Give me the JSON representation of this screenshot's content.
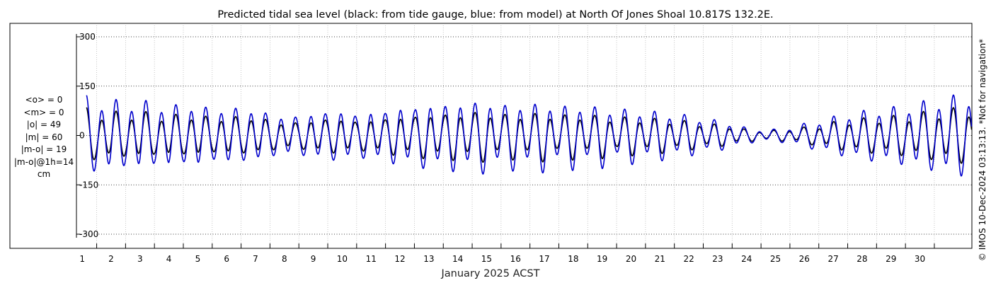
{
  "chart_data": {
    "type": "line",
    "title": "Predicted tidal sea level (black: from tide gauge, blue: from model) at North Of Jones Shoal 10.817S 132.2E.",
    "xlabel": "January 2025 ACST",
    "ylabel": "",
    "ylim": [
      -300,
      300
    ],
    "xlim": [
      0.3,
      31.3
    ],
    "y_ticks": [
      -300,
      -150,
      0,
      150,
      300
    ],
    "y_tick_labels": [
      "-300",
      "-150",
      "0",
      "150",
      "300"
    ],
    "x_ticks": [
      1,
      2,
      3,
      4,
      5,
      6,
      7,
      8,
      9,
      10,
      11,
      12,
      13,
      14,
      15,
      16,
      17,
      18,
      19,
      20,
      21,
      22,
      23,
      24,
      25,
      26,
      27,
      28,
      29,
      30
    ],
    "x_tick_labels": [
      "1",
      "2",
      "3",
      "4",
      "5",
      "6",
      "7",
      "8",
      "9",
      "10",
      "11",
      "12",
      "13",
      "14",
      "15",
      "16",
      "17",
      "18",
      "19",
      "20",
      "21",
      "22",
      "23",
      "24",
      "25",
      "26",
      "27",
      "28",
      "29",
      "30"
    ],
    "grid": true,
    "series": [
      {
        "color": "#000000",
        "x": [
          0.5,
          1.0,
          1.5,
          2.0,
          2.5,
          3.0,
          3.5,
          4.0,
          4.5,
          5.0,
          5.5,
          6.0,
          6.5,
          7.0,
          7.5,
          8.0,
          8.5,
          9.0,
          9.5,
          10.0,
          10.5,
          11.0,
          11.5,
          12.0,
          12.5,
          13.0,
          13.5,
          14.0,
          14.5,
          15.0,
          15.5,
          16.0,
          16.5,
          17.0,
          17.5,
          18.0,
          18.5,
          19.0,
          19.5,
          20.0,
          20.5,
          21.0,
          21.5,
          22.0,
          22.5,
          23.0,
          23.5,
          24.0,
          24.5,
          25.0,
          25.5,
          26.0,
          26.5,
          27.0,
          27.5,
          28.0,
          28.5,
          29.0,
          29.5,
          30.0,
          30.5,
          31.0
        ],
        "amplitude": [
          75,
          55,
          68,
          50,
          70,
          45,
          62,
          48,
          62,
          40,
          58,
          45,
          55,
          35,
          40,
          30,
          48,
          38,
          55,
          32,
          50,
          40,
          60,
          45,
          68,
          50,
          70,
          55,
          72,
          48,
          65,
          50,
          70,
          45,
          65,
          45,
          60,
          40,
          55,
          38,
          50,
          35,
          40,
          28,
          30,
          22,
          15,
          12,
          12,
          15,
          20,
          25,
          35,
          38,
          45,
          45,
          50,
          50,
          60,
          60,
          70,
          70
        ],
        "diurnal": [
          -25,
          -20,
          -18,
          -15,
          -20,
          -15,
          -15,
          -10,
          -15,
          -10,
          -15,
          -8,
          -12,
          -10,
          -10,
          -8,
          -10,
          -10,
          -15,
          -8,
          -12,
          -10,
          -15,
          -12,
          -18,
          -12,
          -20,
          -15,
          -20,
          -15,
          -18,
          -12,
          -18,
          -12,
          -15,
          -10,
          -15,
          -10,
          -12,
          -8,
          -10,
          -8,
          -10,
          -5,
          -8,
          -5,
          -5,
          -5,
          -5,
          -5,
          -8,
          -8,
          -10,
          -10,
          -12,
          -12,
          -15,
          -15,
          -18,
          -18,
          -20,
          -20
        ]
      },
      {
        "color": "#0000cc",
        "x": [
          0.5,
          1.0,
          1.5,
          2.0,
          2.5,
          3.0,
          3.5,
          4.0,
          4.5,
          5.0,
          5.5,
          6.0,
          6.5,
          7.0,
          7.5,
          8.0,
          8.5,
          9.0,
          9.5,
          10.0,
          10.5,
          11.0,
          11.5,
          12.0,
          12.5,
          13.0,
          13.5,
          14.0,
          14.5,
          15.0,
          15.5,
          16.0,
          16.5,
          17.0,
          17.5,
          18.0,
          18.5,
          19.0,
          19.5,
          20.0,
          20.5,
          21.0,
          21.5,
          22.0,
          22.5,
          23.0,
          23.5,
          24.0,
          24.5,
          25.0,
          25.5,
          26.0,
          26.5,
          27.0,
          27.5,
          28.0,
          28.5,
          29.0,
          29.5,
          30.0,
          30.5,
          31.0
        ],
        "amplitude": [
          110,
          85,
          105,
          75,
          105,
          70,
          95,
          70,
          95,
          60,
          88,
          65,
          80,
          50,
          60,
          45,
          70,
          55,
          80,
          48,
          75,
          58,
          90,
          65,
          100,
          72,
          105,
          78,
          108,
          70,
          98,
          72,
          102,
          65,
          95,
          65,
          88,
          58,
          80,
          55,
          72,
          50,
          58,
          40,
          42,
          30,
          20,
          15,
          15,
          20,
          30,
          38,
          50,
          55,
          65,
          68,
          75,
          75,
          90,
          90,
          105,
          105
        ],
        "diurnal": [
          -30,
          -25,
          -22,
          -18,
          -25,
          -18,
          -18,
          -12,
          -18,
          -12,
          -18,
          -10,
          -15,
          -12,
          -12,
          -10,
          -12,
          -12,
          -18,
          -10,
          -15,
          -12,
          -18,
          -15,
          -22,
          -15,
          -25,
          -18,
          -25,
          -18,
          -22,
          -15,
          -22,
          -15,
          -18,
          -12,
          -18,
          -12,
          -15,
          -10,
          -12,
          -10,
          -12,
          -6,
          -10,
          -6,
          -6,
          -6,
          -6,
          -6,
          -10,
          -10,
          -12,
          -12,
          -15,
          -15,
          -18,
          -18,
          -22,
          -22,
          -25,
          -25
        ]
      }
    ]
  },
  "stats": {
    "mean_obs": "<o> = 0",
    "mean_model": "<m> = 0",
    "abs_obs": "|o| = 49",
    "abs_model": "|m| = 60",
    "abs_diff": "|m-o| = 19",
    "abs_diff_1h": "|m-o|@1h=14",
    "unit": "cm"
  },
  "side_note": "© IMOS 10-Dec-2024 03:13:13. *Not for navigation*"
}
